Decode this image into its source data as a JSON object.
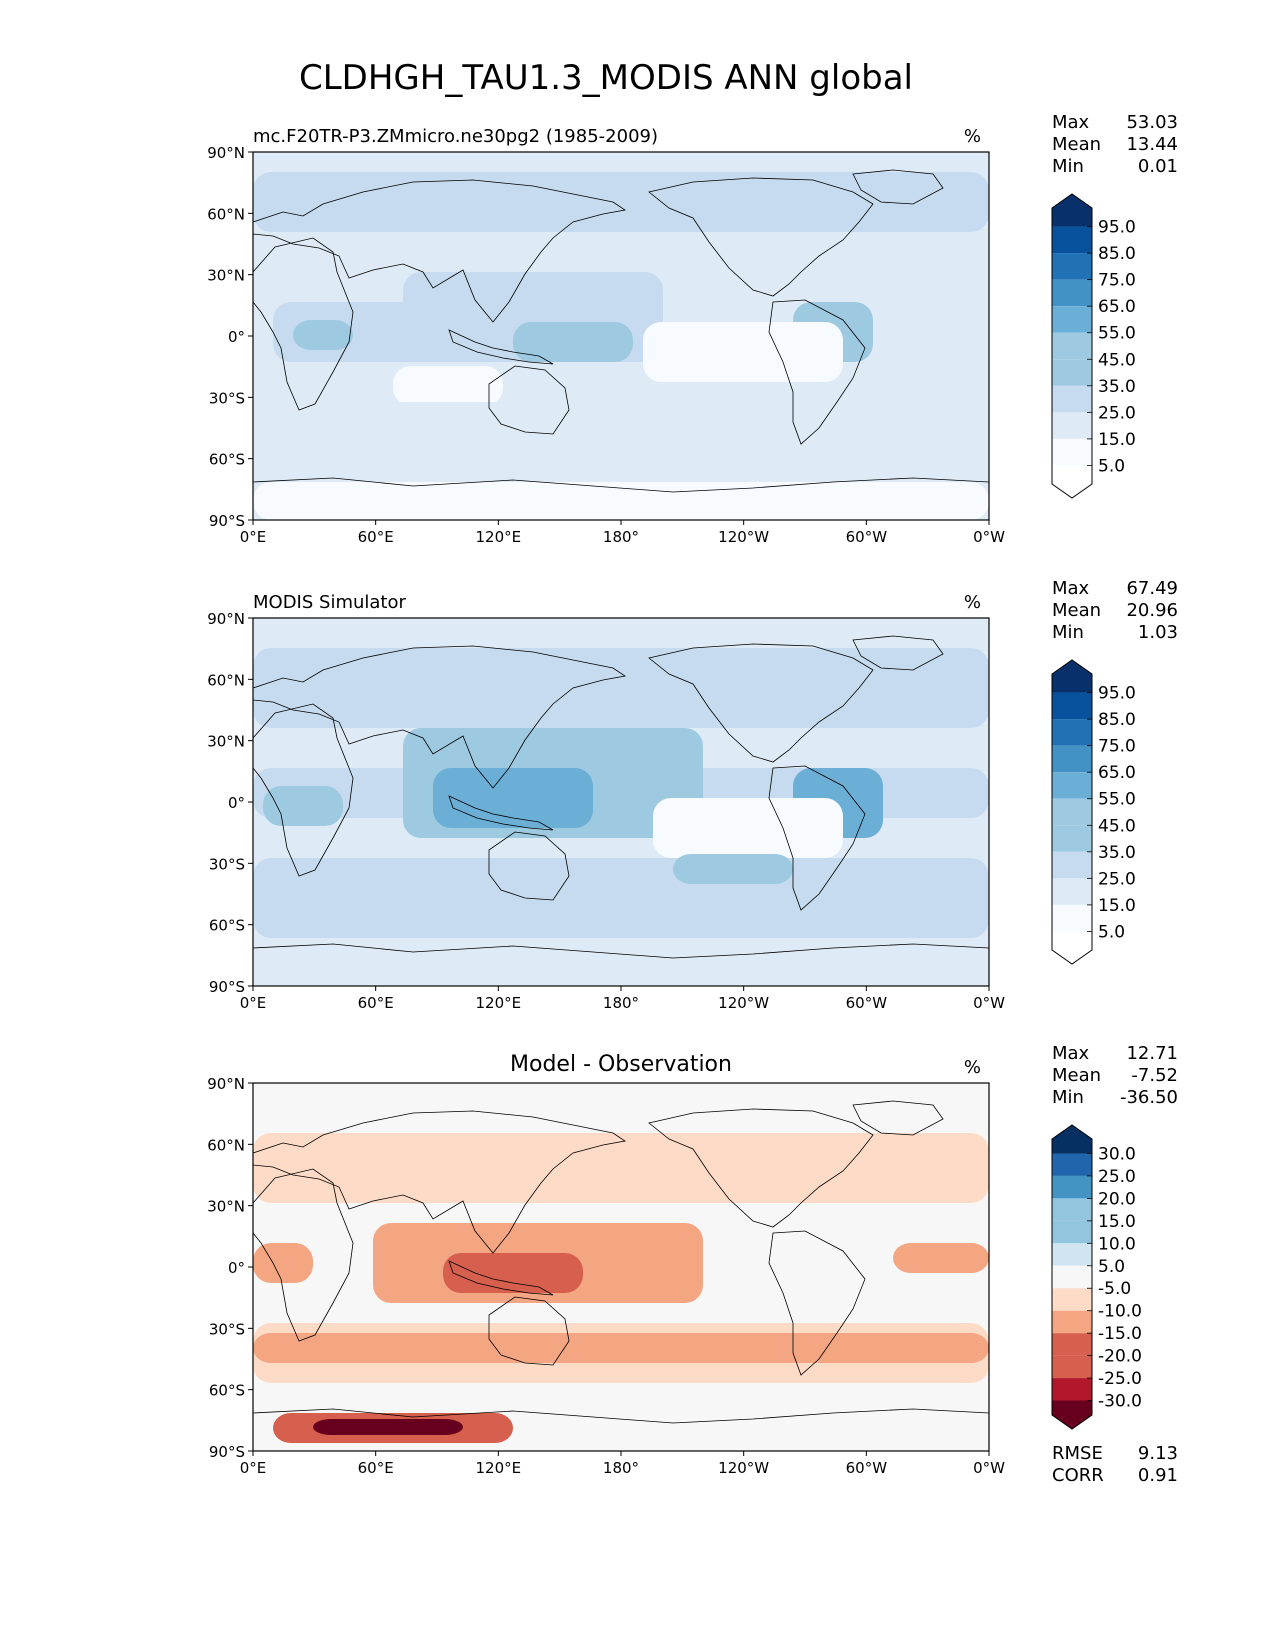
{
  "figure_title": "CLDHGH_TAU1.3_MODIS ANN global",
  "colors": {
    "ocean_test": "#f7fbff",
    "blue_ramp": [
      "#ffffff",
      "#f7fbff",
      "#deebf7",
      "#c6dbef",
      "#9ecae1",
      "#6baed6",
      "#4292c6",
      "#2171b5",
      "#08519c",
      "#08306b"
    ],
    "diff_ramp": [
      "#67001f",
      "#b2182b",
      "#d6604d",
      "#f4a582",
      "#fddbc7",
      "#f7f7f7",
      "#d1e5f0",
      "#92c5de",
      "#4393c3",
      "#2166ac",
      "#053061"
    ],
    "coast": "#000000"
  },
  "axes": {
    "lat_ticks": [
      "90°N",
      "60°N",
      "30°N",
      "0°",
      "30°S",
      "60°S",
      "90°S"
    ],
    "lon_ticks": [
      "0°E",
      "60°E",
      "120°E",
      "180°",
      "120°W",
      "60°W",
      "0°W"
    ]
  },
  "panels": [
    {
      "id": "test",
      "left_title": "mc.F20TR-P3.ZMmicro.ne30pg2 (1985-2009)",
      "center_title": "",
      "units": "%",
      "stats": [
        {
          "label": "Max",
          "value": "53.03"
        },
        {
          "label": "Mean",
          "value": "13.44"
        },
        {
          "label": "Min",
          "value": "0.01"
        }
      ],
      "colorbar": {
        "labels": [
          "95.0",
          "85.0",
          "75.0",
          "65.0",
          "55.0",
          "45.0",
          "35.0",
          "25.0",
          "15.0",
          "5.0"
        ],
        "ramp": "blue"
      },
      "bottom_stats": []
    },
    {
      "id": "ref",
      "left_title": "MODIS Simulator",
      "center_title": "",
      "units": "%",
      "stats": [
        {
          "label": "Max",
          "value": "67.49"
        },
        {
          "label": "Mean",
          "value": "20.96"
        },
        {
          "label": "Min",
          "value": "1.03"
        }
      ],
      "colorbar": {
        "labels": [
          "95.0",
          "85.0",
          "75.0",
          "65.0",
          "55.0",
          "45.0",
          "35.0",
          "25.0",
          "15.0",
          "5.0"
        ],
        "ramp": "blue"
      },
      "bottom_stats": []
    },
    {
      "id": "diff",
      "left_title": "",
      "center_title": "Model - Observation",
      "units": "%",
      "stats": [
        {
          "label": "Max",
          "value": "12.71"
        },
        {
          "label": "Mean",
          "value": "-7.52"
        },
        {
          "label": "Min",
          "value": "-36.50"
        }
      ],
      "colorbar": {
        "labels": [
          "30.0",
          "25.0",
          "20.0",
          "15.0",
          "10.0",
          "5.0",
          "-5.0",
          "-10.0",
          "-15.0",
          "-20.0",
          "-25.0",
          "-30.0"
        ],
        "ramp": "diff"
      },
      "bottom_stats": [
        {
          "label": "RMSE",
          "value": "9.13"
        },
        {
          "label": "CORR",
          "value": "0.91"
        }
      ]
    }
  ]
}
